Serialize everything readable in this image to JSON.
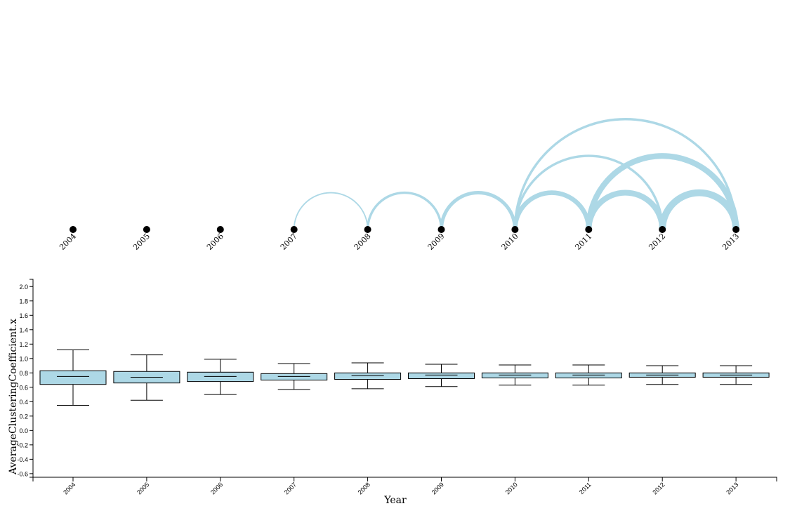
{
  "chart_data": [
    {
      "type": "arc",
      "nodes": [
        "2004",
        "2005",
        "2006",
        "2007",
        "2008",
        "2009",
        "2010",
        "2011",
        "2012",
        "2013"
      ],
      "links": [
        {
          "source": "2007",
          "target": "2008",
          "weight": 1
        },
        {
          "source": "2008",
          "target": "2009",
          "weight": 2
        },
        {
          "source": "2009",
          "target": "2010",
          "weight": 3
        },
        {
          "source": "2010",
          "target": "2011",
          "weight": 4
        },
        {
          "source": "2010",
          "target": "2012",
          "weight": 2
        },
        {
          "source": "2010",
          "target": "2013",
          "weight": 2
        },
        {
          "source": "2011",
          "target": "2012",
          "weight": 5
        },
        {
          "source": "2011",
          "target": "2013",
          "weight": 5
        },
        {
          "source": "2012",
          "target": "2013",
          "weight": 6
        }
      ],
      "link_color": "#add8e6",
      "node_color": "#000000"
    },
    {
      "type": "box",
      "xlabel": "Year",
      "ylabel": "AverageClusteringCoefficient.x",
      "ylim": [
        -0.65,
        2.1
      ],
      "yticks": [
        "-0.6",
        "-0.4",
        "-0.2",
        "0.0",
        "0.2",
        "0.4",
        "0.6",
        "0.8",
        "1.0",
        "1.2",
        "1.4",
        "1.6",
        "1.8",
        "2.0"
      ],
      "categories": [
        "2004",
        "2005",
        "2006",
        "2007",
        "2008",
        "2009",
        "2010",
        "2011",
        "2012",
        "2013"
      ],
      "boxes": [
        {
          "min": 0.35,
          "q1": 0.64,
          "median": 0.75,
          "q3": 0.83,
          "max": 1.12
        },
        {
          "min": 0.42,
          "q1": 0.66,
          "median": 0.74,
          "q3": 0.82,
          "max": 1.05
        },
        {
          "min": 0.5,
          "q1": 0.68,
          "median": 0.75,
          "q3": 0.81,
          "max": 0.99
        },
        {
          "min": 0.57,
          "q1": 0.7,
          "median": 0.75,
          "q3": 0.79,
          "max": 0.93
        },
        {
          "min": 0.58,
          "q1": 0.71,
          "median": 0.76,
          "q3": 0.8,
          "max": 0.94
        },
        {
          "min": 0.61,
          "q1": 0.72,
          "median": 0.77,
          "q3": 0.8,
          "max": 0.92
        },
        {
          "min": 0.63,
          "q1": 0.73,
          "median": 0.77,
          "q3": 0.8,
          "max": 0.91
        },
        {
          "min": 0.63,
          "q1": 0.73,
          "median": 0.77,
          "q3": 0.8,
          "max": 0.91
        },
        {
          "min": 0.64,
          "q1": 0.74,
          "median": 0.77,
          "q3": 0.8,
          "max": 0.9
        },
        {
          "min": 0.64,
          "q1": 0.74,
          "median": 0.77,
          "q3": 0.8,
          "max": 0.9
        }
      ],
      "box_fill": "#add8e6",
      "grid": false
    }
  ]
}
